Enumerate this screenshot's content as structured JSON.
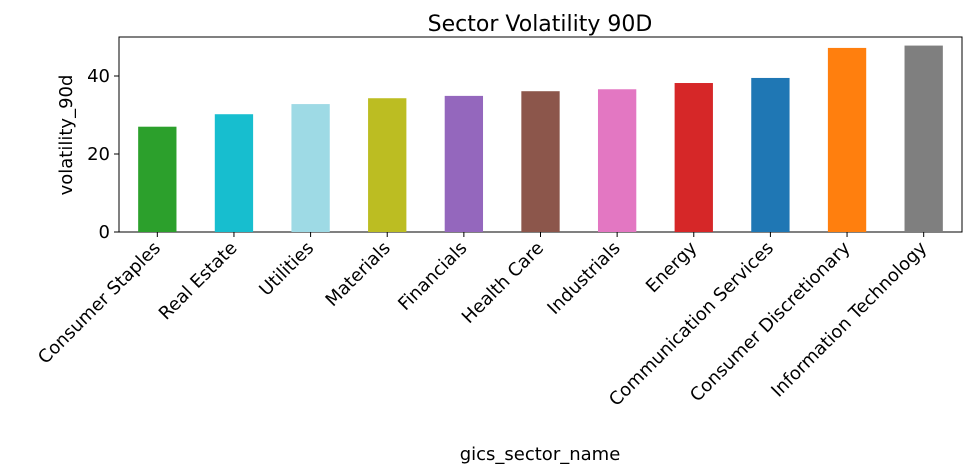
{
  "chart_data": {
    "type": "bar",
    "title": "Sector Volatility 90D",
    "xlabel": "gics_sector_name",
    "ylabel": "volatility_90d",
    "ylim": [
      0,
      50
    ],
    "yticks": [
      0,
      20,
      40
    ],
    "grid": false,
    "categories": [
      "Consumer Staples",
      "Real Estate",
      "Utilities",
      "Materials",
      "Financials",
      "Health Care",
      "Industrials",
      "Energy",
      "Communication Services",
      "Consumer Discretionary",
      "Information Technology"
    ],
    "values": [
      27.0,
      30.2,
      32.8,
      34.3,
      34.9,
      36.1,
      36.6,
      38.2,
      39.5,
      47.2,
      47.8
    ],
    "colors": [
      "#2ca02c",
      "#17becf",
      "#9edae5",
      "#bcbd22",
      "#9467bd",
      "#8c564b",
      "#e377c2",
      "#d62728",
      "#1f77b4",
      "#ff7f0e",
      "#7f7f7f"
    ]
  }
}
